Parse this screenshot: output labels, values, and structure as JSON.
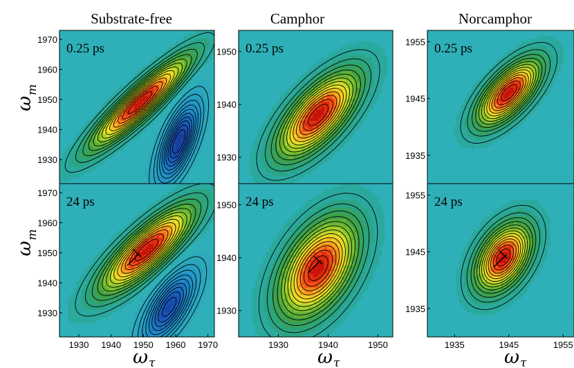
{
  "figure": {
    "y_axis_symbol": "ω",
    "y_axis_subscript": "m",
    "x_axis_symbol": "ω",
    "x_axis_subscript": "τ"
  },
  "chart_data": [
    {
      "type": "heatmap",
      "title": "Substrate-free",
      "annotation": "0.25 ps",
      "xlim": [
        1924,
        1972
      ],
      "ylim": [
        1922,
        1973
      ],
      "xticks": [
        1930,
        1940,
        1950,
        1960,
        1970
      ],
      "yticks": [
        1930,
        1940,
        1950,
        1960,
        1970
      ],
      "show_x_ticks": false,
      "show_y_ticks": true,
      "background": "#2fb0b8",
      "positive_peaks": [
        {
          "cx": 1949,
          "cy": 1949,
          "sigma_major": 14,
          "sigma_minor": 3,
          "angle_deg": 45,
          "amp": 1.0
        }
      ],
      "negative_peaks": [
        {
          "cx": 1961,
          "cy": 1936,
          "sigma_major": 9,
          "sigma_minor": 3,
          "angle_deg": 70,
          "amp": 0.8
        }
      ]
    },
    {
      "type": "heatmap",
      "title": "Camphor",
      "annotation": "0.25 ps",
      "xlim": [
        1922,
        1953
      ],
      "ylim": [
        1925,
        1954
      ],
      "xticks": [
        1930,
        1940,
        1950
      ],
      "yticks": [
        1930,
        1940,
        1950
      ],
      "show_x_ticks": false,
      "show_y_ticks": true,
      "background": "#2fb5c0",
      "positive_peaks": [
        {
          "cx": 1938,
          "cy": 1938,
          "sigma_major": 7,
          "sigma_minor": 3,
          "angle_deg": 45,
          "amp": 1.0
        }
      ],
      "negative_peaks": []
    },
    {
      "type": "heatmap",
      "title": "Norcamphor",
      "annotation": "0.25 ps",
      "xlim": [
        1930,
        1957
      ],
      "ylim": [
        1930,
        1957
      ],
      "xticks": [
        1935,
        1945,
        1955
      ],
      "yticks": [
        1935,
        1945,
        1955
      ],
      "show_x_ticks": false,
      "show_y_ticks": true,
      "background": "#1f84c4",
      "positive_peaks": [
        {
          "cx": 1945,
          "cy": 1946,
          "sigma_major": 5,
          "sigma_minor": 2.2,
          "angle_deg": 45,
          "amp": 1.0
        }
      ],
      "negative_peaks": []
    },
    {
      "type": "heatmap",
      "title": "",
      "annotation": "24 ps",
      "xlim": [
        1924,
        1972
      ],
      "ylim": [
        1922,
        1973
      ],
      "xticks": [
        1930,
        1940,
        1950,
        1960,
        1970
      ],
      "yticks": [
        1930,
        1940,
        1950,
        1960,
        1970
      ],
      "show_x_ticks": true,
      "show_y_ticks": true,
      "background": "#2fb0b8",
      "positive_peaks": [
        {
          "cx": 1951,
          "cy": 1951,
          "sigma_major": 13,
          "sigma_minor": 4,
          "angle_deg": 45,
          "amp": 1.0
        }
      ],
      "negative_peaks": [
        {
          "cx": 1958,
          "cy": 1932,
          "sigma_major": 9,
          "sigma_minor": 3.5,
          "angle_deg": 60,
          "amp": 0.7
        }
      ],
      "crosshair": {
        "x": 1948,
        "y": 1949
      }
    },
    {
      "type": "heatmap",
      "title": "",
      "annotation": "24 ps",
      "xlim": [
        1922,
        1953
      ],
      "ylim": [
        1925,
        1954
      ],
      "xticks": [
        1930,
        1940,
        1950
      ],
      "yticks": [
        1930,
        1940,
        1950
      ],
      "show_x_ticks": true,
      "show_y_ticks": true,
      "background": "#2fb5c0",
      "positive_peaks": [
        {
          "cx": 1938,
          "cy": 1938,
          "sigma_major": 7,
          "sigma_minor": 4,
          "angle_deg": 55,
          "amp": 1.0
        }
      ],
      "negative_peaks": [],
      "crosshair": {
        "x": 1938,
        "y": 1939
      }
    },
    {
      "type": "heatmap",
      "title": "",
      "annotation": "24 ps",
      "xlim": [
        1930,
        1957
      ],
      "ylim": [
        1930,
        1957
      ],
      "xticks": [
        1935,
        1945,
        1955
      ],
      "yticks": [
        1935,
        1945,
        1955
      ],
      "show_x_ticks": true,
      "show_y_ticks": true,
      "background": "#2a9ed4",
      "positive_peaks": [
        {
          "cx": 1944,
          "cy": 1944,
          "sigma_major": 4.5,
          "sigma_minor": 2.7,
          "angle_deg": 55,
          "amp": 1.0
        }
      ],
      "negative_peaks": [],
      "crosshair": {
        "x": 1944,
        "y": 1944
      }
    }
  ]
}
